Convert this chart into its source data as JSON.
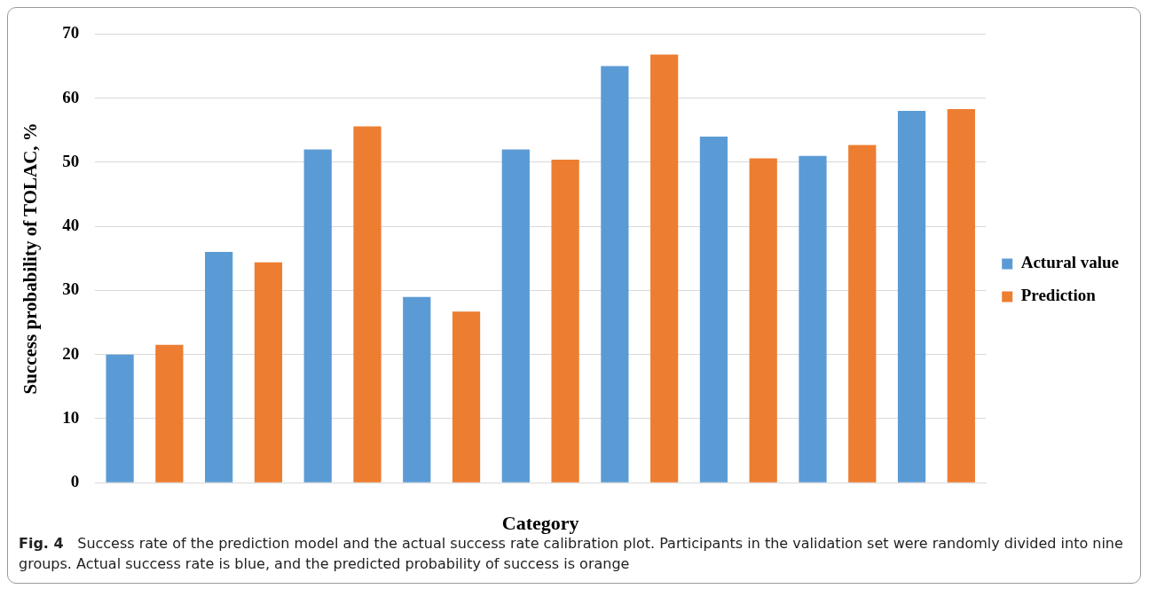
{
  "chart_data": {
    "type": "bar",
    "xlabel": "Category",
    "ylabel": "Success probability of TOLAC, %",
    "categories": [
      null,
      null,
      null,
      null,
      null,
      null,
      null,
      null,
      null
    ],
    "series": [
      {
        "name": "Actural value",
        "color": "#5b9bd5",
        "values": [
          20,
          36,
          52,
          29,
          52,
          65,
          54,
          51,
          58
        ]
      },
      {
        "name": "Prediction",
        "color": "#ed7d31",
        "values": [
          21.5,
          34.4,
          55.6,
          26.7,
          50.4,
          66.8,
          50.6,
          52.7,
          58.3
        ]
      }
    ],
    "ylim": [
      0,
      70
    ],
    "yticks": [
      0,
      10,
      20,
      30,
      40,
      50,
      60,
      70
    ],
    "grid": "y",
    "legend": "right",
    "annotations": [
      "Fig. 4",
      "Success rate of the prediction model and the actual success rate calibration plot. Participants in the validation set were randomly divided into nine groups. Actual success rate is blue, and the predicted probability of success is orange"
    ]
  }
}
